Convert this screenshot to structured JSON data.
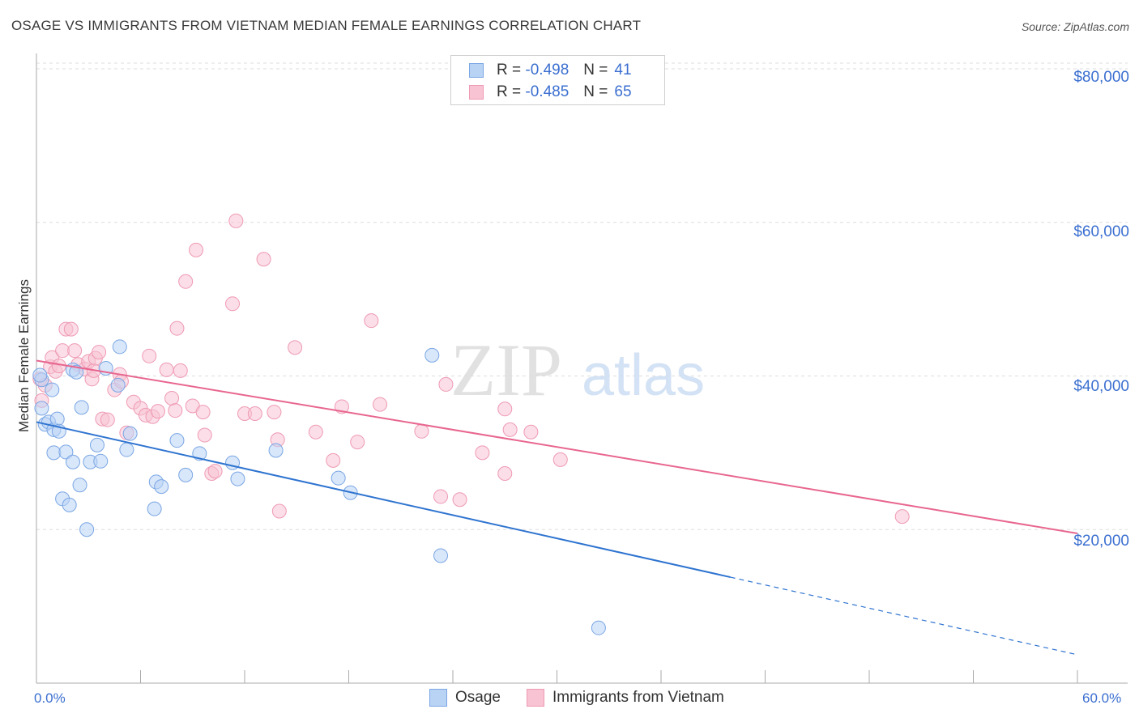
{
  "title": "OSAGE VS IMMIGRANTS FROM VIETNAM MEDIAN FEMALE EARNINGS CORRELATION CHART",
  "source": "Source: ZipAtlas.com",
  "watermark": {
    "zip": "ZIP",
    "atlas": "atlas"
  },
  "legend_box": {
    "rows": [
      {
        "r_label": "R =",
        "r_value": "-0.498",
        "n_label": "N =",
        "n_value": "41"
      },
      {
        "r_label": "R =",
        "r_value": "-0.485",
        "n_label": "N =",
        "n_value": "65"
      }
    ]
  },
  "colors": {
    "osage_fill": "#b9d3f5",
    "osage_stroke": "#7aa6e4",
    "osage_line": "#2f74d0",
    "viet_fill": "#f8c3d3",
    "viet_stroke": "#ef9ab4",
    "viet_line": "#e8668f",
    "axis_text": "#3b6fd0",
    "grid": "#dddddd"
  },
  "chart_data": {
    "type": "scatter",
    "title": "OSAGE VS IMMIGRANTS FROM VIETNAM MEDIAN FEMALE EARNINGS CORRELATION CHART",
    "xlabel": "",
    "ylabel": "Median Female Earnings",
    "xlim": [
      0,
      60
    ],
    "ylim": [
      0,
      82000
    ],
    "x_tick_labels": [
      "0.0%",
      "60.0%"
    ],
    "y_ticks": [
      20000,
      40000,
      60000,
      80000
    ],
    "y_tick_labels": [
      "$20,000",
      "$40,000",
      "$60,000",
      "$80,000"
    ],
    "legend_position": "bottom",
    "series": [
      {
        "name": "Osage",
        "r": -0.498,
        "n": 41,
        "trend": {
          "x0": 0,
          "y0": 34000,
          "x1": 40,
          "y1": 13800,
          "dash_to_x": 60,
          "dash_to_y": 3700
        },
        "points": [
          [
            0.3,
            39500
          ],
          [
            0.3,
            35800
          ],
          [
            0.5,
            33700
          ],
          [
            0.7,
            34000
          ],
          [
            0.9,
            38200
          ],
          [
            1.0,
            33000
          ],
          [
            1.0,
            30000
          ],
          [
            1.2,
            34400
          ],
          [
            1.3,
            32800
          ],
          [
            1.5,
            24000
          ],
          [
            1.7,
            30100
          ],
          [
            1.9,
            23200
          ],
          [
            2.1,
            28800
          ],
          [
            2.1,
            40800
          ],
          [
            2.3,
            40500
          ],
          [
            2.5,
            25800
          ],
          [
            2.6,
            35900
          ],
          [
            2.9,
            20000
          ],
          [
            3.1,
            28800
          ],
          [
            3.5,
            31000
          ],
          [
            3.7,
            28900
          ],
          [
            4.0,
            41000
          ],
          [
            4.7,
            38800
          ],
          [
            4.8,
            43800
          ],
          [
            5.2,
            30400
          ],
          [
            5.4,
            32500
          ],
          [
            6.8,
            22700
          ],
          [
            6.9,
            26200
          ],
          [
            7.2,
            25600
          ],
          [
            8.1,
            31600
          ],
          [
            8.6,
            27100
          ],
          [
            9.4,
            29900
          ],
          [
            11.3,
            28700
          ],
          [
            11.6,
            26600
          ],
          [
            13.8,
            30300
          ],
          [
            17.4,
            26700
          ],
          [
            18.1,
            24800
          ],
          [
            22.8,
            42700
          ],
          [
            23.3,
            16600
          ],
          [
            32.4,
            7200
          ],
          [
            0.2,
            40100
          ]
        ]
      },
      {
        "name": "Immigrants from Vietnam",
        "r": -0.485,
        "n": 65,
        "trend": {
          "x0": 0,
          "y0": 42000,
          "x1": 60,
          "y1": 19500
        },
        "points": [
          [
            0.2,
            39600
          ],
          [
            0.3,
            36800
          ],
          [
            0.5,
            38800
          ],
          [
            0.8,
            41200
          ],
          [
            0.9,
            42400
          ],
          [
            1.1,
            40600
          ],
          [
            1.3,
            41300
          ],
          [
            1.5,
            43300
          ],
          [
            1.7,
            46100
          ],
          [
            2.0,
            46100
          ],
          [
            2.2,
            43300
          ],
          [
            2.4,
            41500
          ],
          [
            2.8,
            40900
          ],
          [
            3.0,
            41900
          ],
          [
            3.2,
            39600
          ],
          [
            3.3,
            40700
          ],
          [
            3.4,
            42300
          ],
          [
            3.6,
            43100
          ],
          [
            3.8,
            34400
          ],
          [
            4.1,
            34300
          ],
          [
            4.5,
            38200
          ],
          [
            4.8,
            40200
          ],
          [
            4.9,
            39300
          ],
          [
            5.2,
            32600
          ],
          [
            5.6,
            36600
          ],
          [
            6.0,
            35800
          ],
          [
            6.3,
            34900
          ],
          [
            6.5,
            42600
          ],
          [
            6.7,
            34700
          ],
          [
            7.0,
            35400
          ],
          [
            7.5,
            40800
          ],
          [
            7.8,
            37100
          ],
          [
            8.0,
            35500
          ],
          [
            8.1,
            46200
          ],
          [
            8.3,
            40700
          ],
          [
            8.6,
            52300
          ],
          [
            9.0,
            36100
          ],
          [
            9.2,
            56400
          ],
          [
            9.6,
            35300
          ],
          [
            9.7,
            32300
          ],
          [
            10.1,
            27300
          ],
          [
            10.3,
            27600
          ],
          [
            11.3,
            49400
          ],
          [
            11.5,
            60200
          ],
          [
            12.0,
            35100
          ],
          [
            12.6,
            35100
          ],
          [
            13.1,
            55200
          ],
          [
            13.7,
            35300
          ],
          [
            13.9,
            31700
          ],
          [
            14.0,
            22400
          ],
          [
            14.9,
            43700
          ],
          [
            16.1,
            32700
          ],
          [
            17.1,
            29000
          ],
          [
            17.6,
            36000
          ],
          [
            18.5,
            31400
          ],
          [
            19.3,
            47200
          ],
          [
            19.8,
            36300
          ],
          [
            22.2,
            32800
          ],
          [
            23.3,
            24300
          ],
          [
            23.6,
            38900
          ],
          [
            24.4,
            23900
          ],
          [
            25.7,
            30000
          ],
          [
            27.0,
            27300
          ],
          [
            27.0,
            35700
          ],
          [
            27.3,
            33000
          ]
        ]
      }
    ],
    "extra_points_series_1": [
      [
        28.5,
        32700
      ],
      [
        30.2,
        29100
      ],
      [
        49.9,
        21700
      ]
    ]
  }
}
